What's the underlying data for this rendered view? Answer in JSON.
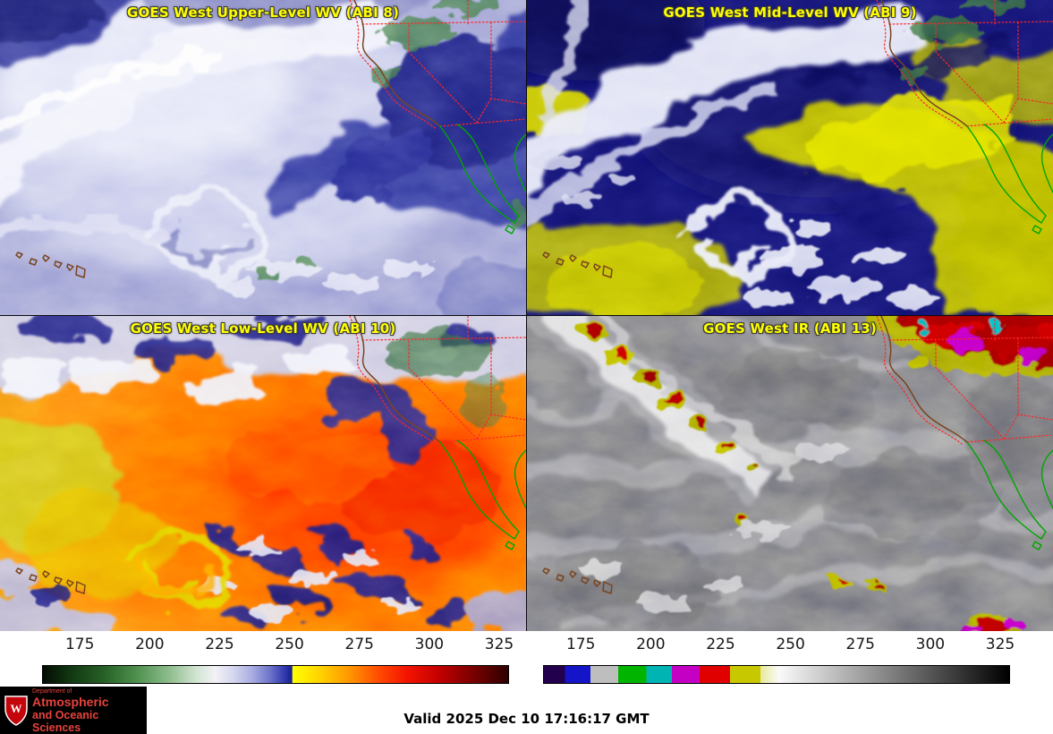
{
  "page": {
    "background": "#ffffff"
  },
  "panels": [
    {
      "title": "GOES West Upper-Level WV (ABI 8)"
    },
    {
      "title": "GOES West Mid-Level WV (ABI 9)"
    },
    {
      "title": "GOES West Low-Level WV (ABI 10)"
    },
    {
      "title": "GOES West IR (ABI 13)"
    }
  ],
  "title_style": {
    "color": "#ffff00"
  },
  "map": {
    "coast_color": "#7a4420",
    "mexico_color": "#00a400",
    "state_border_color": "#ff2626"
  },
  "colorbars": [
    {
      "name": "wv-colorbar",
      "ticks": [
        175,
        200,
        225,
        250,
        275,
        300,
        325
      ],
      "scale_min": 161.5,
      "scale_max": 328.5,
      "stops": [
        {
          "p": 0.0,
          "c": "#030c03"
        },
        {
          "p": 0.06,
          "c": "#123812"
        },
        {
          "p": 0.13,
          "c": "#266026"
        },
        {
          "p": 0.2,
          "c": "#4d8f4d"
        },
        {
          "p": 0.27,
          "c": "#8cbc8c"
        },
        {
          "p": 0.33,
          "c": "#d2e4d2"
        },
        {
          "p": 0.37,
          "c": "#f2f2f6"
        },
        {
          "p": 0.41,
          "c": "#d4d6ee"
        },
        {
          "p": 0.45,
          "c": "#a8ace0"
        },
        {
          "p": 0.49,
          "c": "#6a71c8"
        },
        {
          "p": 0.52,
          "c": "#3038ac"
        },
        {
          "p": 0.535,
          "c": "#181f8e"
        },
        {
          "p": 0.537,
          "c": "#ffff00"
        },
        {
          "p": 0.6,
          "c": "#ffcf00"
        },
        {
          "p": 0.66,
          "c": "#ff9500"
        },
        {
          "p": 0.72,
          "c": "#ff4d00"
        },
        {
          "p": 0.78,
          "c": "#f51500"
        },
        {
          "p": 0.85,
          "c": "#c40000"
        },
        {
          "p": 0.92,
          "c": "#7d0000"
        },
        {
          "p": 1.0,
          "c": "#2e0000"
        }
      ]
    },
    {
      "name": "ir-colorbar",
      "ticks": [
        175,
        200,
        225,
        250,
        275,
        300,
        325
      ],
      "scale_min": 161.5,
      "scale_max": 328.5,
      "stops": [
        {
          "p": 0.0,
          "c": "#23004d"
        },
        {
          "p": 0.045,
          "c": "#23004d"
        },
        {
          "p": 0.045,
          "c": "#1414c8"
        },
        {
          "p": 0.1,
          "c": "#1414c8"
        },
        {
          "p": 0.1,
          "c": "#bebebe"
        },
        {
          "p": 0.16,
          "c": "#bebebe"
        },
        {
          "p": 0.16,
          "c": "#00b400"
        },
        {
          "p": 0.22,
          "c": "#00b400"
        },
        {
          "p": 0.22,
          "c": "#00b4b4"
        },
        {
          "p": 0.275,
          "c": "#00b4b4"
        },
        {
          "p": 0.275,
          "c": "#c300c3"
        },
        {
          "p": 0.335,
          "c": "#c300c3"
        },
        {
          "p": 0.335,
          "c": "#e00000"
        },
        {
          "p": 0.4,
          "c": "#e00000"
        },
        {
          "p": 0.4,
          "c": "#c8c800"
        },
        {
          "p": 0.465,
          "c": "#c8c800"
        },
        {
          "p": 0.465,
          "c": "#e8e89a"
        },
        {
          "p": 0.505,
          "c": "#fafafa"
        },
        {
          "p": 1.0,
          "c": "#000000"
        }
      ]
    }
  ],
  "footer": {
    "valid_text": "Valid 2025 Dec 10 17:16:17 GMT",
    "logo": {
      "line_small": "Department of",
      "line1": "Atmospheric",
      "line2": "and Oceanic Sciences",
      "crest_letter": "W",
      "text_color": "#e8433d",
      "bg": "#000000"
    }
  }
}
